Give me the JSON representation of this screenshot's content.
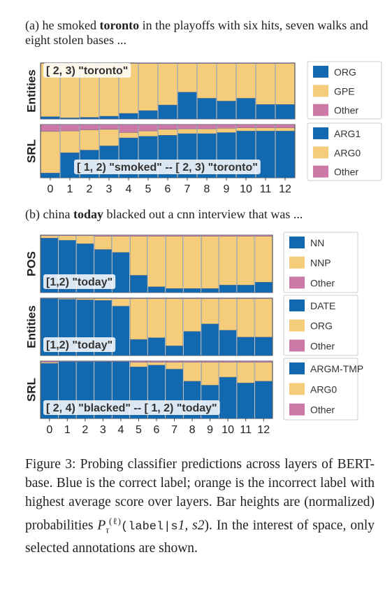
{
  "title_a": {
    "pre": "(a) he smoked ",
    "bold": "toronto",
    "post": " in the playoffs with six hits, seven walks and eight stolen bases ..."
  },
  "title_b": {
    "pre": "(b) china ",
    "bold": "today",
    "post": " blacked out a cnn interview that was ..."
  },
  "x_ticks": [
    "0",
    "1",
    "2",
    "3",
    "4",
    "5",
    "6",
    "7",
    "8",
    "9",
    "10",
    "11",
    "12"
  ],
  "colors": {
    "blue": "#1269b0",
    "orange": "#f5cc7a",
    "pink": "#cc79a7"
  },
  "caption": {
    "lead": "Figure 3:  Probing classifier predictions across layers of BERT-base.  Blue is the correct label; orange is the incorrect label with highest average score over layers. Bar heights are (normalized) probabilities ",
    "sym": "P",
    "sub": "τ",
    "sup": "(ℓ)",
    "arg": "(label|s",
    "arg1": "1",
    "argsep": ", s",
    "arg2": "2",
    "argend": ").",
    "tail": " In the interest of space, only selected annotations are shown."
  },
  "chart_data": [
    {
      "type": "bar",
      "stacked": true,
      "panel": "a",
      "ylabel": "Entities",
      "annotation": "[ 2, 3) \"toronto\"",
      "categories": [
        "0",
        "1",
        "2",
        "3",
        "4",
        "5",
        "6",
        "7",
        "8",
        "9",
        "10",
        "11",
        "12"
      ],
      "series": [
        {
          "name": "ORG",
          "color": "blue",
          "values": [
            0.04,
            0.02,
            0.03,
            0.05,
            0.1,
            0.15,
            0.25,
            0.48,
            0.37,
            0.32,
            0.37,
            0.26,
            0.26
          ]
        },
        {
          "name": "GPE",
          "color": "orange",
          "values": [
            0.95,
            0.97,
            0.96,
            0.94,
            0.89,
            0.84,
            0.74,
            0.51,
            0.62,
            0.67,
            0.62,
            0.73,
            0.73
          ]
        },
        {
          "name": "Other",
          "color": "pink",
          "values": [
            0.01,
            0.01,
            0.01,
            0.01,
            0.01,
            0.01,
            0.01,
            0.01,
            0.01,
            0.01,
            0.01,
            0.01,
            0.01
          ]
        }
      ]
    },
    {
      "type": "bar",
      "stacked": true,
      "panel": "a",
      "ylabel": "SRL",
      "annotation": "[ 1, 2) \"smoked\" -- [ 2, 3) \"toronto\"",
      "categories": [
        "0",
        "1",
        "2",
        "3",
        "4",
        "5",
        "6",
        "7",
        "8",
        "9",
        "10",
        "11",
        "12"
      ],
      "series": [
        {
          "name": "ARG1",
          "color": "blue",
          "values": [
            0.09,
            0.47,
            0.52,
            0.6,
            0.75,
            0.78,
            0.8,
            0.83,
            0.83,
            0.85,
            0.88,
            0.88,
            0.88
          ]
        },
        {
          "name": "ARG0",
          "color": "orange",
          "values": [
            0.78,
            0.41,
            0.38,
            0.31,
            0.1,
            0.1,
            0.11,
            0.09,
            0.09,
            0.08,
            0.06,
            0.06,
            0.06
          ]
        },
        {
          "name": "Other",
          "color": "pink",
          "values": [
            0.13,
            0.12,
            0.1,
            0.09,
            0.15,
            0.12,
            0.09,
            0.08,
            0.08,
            0.07,
            0.06,
            0.06,
            0.06
          ]
        }
      ]
    },
    {
      "type": "bar",
      "stacked": true,
      "panel": "b",
      "ylabel": "POS",
      "annotation": "[1,2) \"today\"",
      "categories": [
        "0",
        "1",
        "2",
        "3",
        "4",
        "5",
        "6",
        "7",
        "8",
        "9",
        "10",
        "11",
        "12"
      ],
      "series": [
        {
          "name": "NN",
          "color": "blue",
          "values": [
            0.95,
            0.91,
            0.85,
            0.75,
            0.7,
            0.3,
            0.1,
            0.07,
            0.07,
            0.07,
            0.13,
            0.13,
            0.18
          ]
        },
        {
          "name": "NNP",
          "color": "orange",
          "values": [
            0.04,
            0.08,
            0.14,
            0.23,
            0.28,
            0.68,
            0.88,
            0.91,
            0.91,
            0.91,
            0.85,
            0.85,
            0.8
          ]
        },
        {
          "name": "Other",
          "color": "pink",
          "values": [
            0.01,
            0.01,
            0.01,
            0.02,
            0.02,
            0.02,
            0.02,
            0.02,
            0.02,
            0.02,
            0.02,
            0.02,
            0.02
          ]
        }
      ]
    },
    {
      "type": "bar",
      "stacked": true,
      "panel": "b",
      "ylabel": "Entities",
      "annotation": "[1,2) \"today\"",
      "categories": [
        "0",
        "1",
        "2",
        "3",
        "4",
        "5",
        "6",
        "7",
        "8",
        "9",
        "10",
        "11",
        "12"
      ],
      "series": [
        {
          "name": "DATE",
          "color": "blue",
          "values": [
            0.99,
            0.98,
            0.97,
            0.96,
            0.86,
            0.28,
            0.31,
            0.17,
            0.42,
            0.55,
            0.44,
            0.32,
            0.32
          ]
        },
        {
          "name": "ORG",
          "color": "orange",
          "values": [
            0.005,
            0.015,
            0.025,
            0.035,
            0.13,
            0.71,
            0.68,
            0.82,
            0.57,
            0.44,
            0.55,
            0.67,
            0.67
          ]
        },
        {
          "name": "Other",
          "color": "pink",
          "values": [
            0.005,
            0.005,
            0.005,
            0.005,
            0.01,
            0.01,
            0.01,
            0.01,
            0.01,
            0.01,
            0.01,
            0.01,
            0.01
          ]
        }
      ]
    },
    {
      "type": "bar",
      "stacked": true,
      "panel": "b",
      "ylabel": "SRL",
      "annotation": "[ 2, 4) \"blacked\" -- [ 1, 2) \"today\"",
      "categories": [
        "0",
        "1",
        "2",
        "3",
        "4",
        "5",
        "6",
        "7",
        "8",
        "9",
        "10",
        "11",
        "12"
      ],
      "series": [
        {
          "name": "ARGM-TMP",
          "color": "blue",
          "values": [
            0.96,
            0.99,
            0.99,
            0.99,
            0.99,
            0.9,
            0.93,
            0.86,
            0.65,
            0.58,
            0.72,
            0.62,
            0.65
          ]
        },
        {
          "name": "ARG0",
          "color": "orange",
          "values": [
            0.02,
            0.0,
            0.0,
            0.0,
            0.0,
            0.08,
            0.05,
            0.12,
            0.33,
            0.4,
            0.26,
            0.36,
            0.33
          ]
        },
        {
          "name": "Other",
          "color": "pink",
          "values": [
            0.02,
            0.01,
            0.01,
            0.01,
            0.01,
            0.02,
            0.02,
            0.02,
            0.02,
            0.02,
            0.02,
            0.02,
            0.02
          ]
        }
      ]
    }
  ]
}
